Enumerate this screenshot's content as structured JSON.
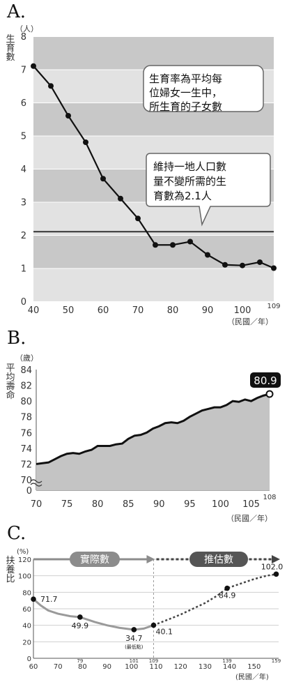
{
  "panels": [
    {
      "letter": "A."
    },
    {
      "letter": "B."
    },
    {
      "letter": "C."
    }
  ],
  "chart_data": [
    {
      "type": "line",
      "y_unit": "（人）",
      "ylabel": "生育數",
      "x_unit": "（民國／年）",
      "x_ticks": [
        40,
        50,
        60,
        70,
        80,
        90,
        100
      ],
      "x_end_label": "109",
      "xlim": [
        40,
        109
      ],
      "ylim": [
        0,
        8
      ],
      "y_ticks": [
        0,
        1,
        2,
        3,
        4,
        5,
        6,
        7,
        8
      ],
      "x": [
        40,
        45,
        50,
        55,
        60,
        65,
        70,
        75,
        80,
        85,
        90,
        95,
        100,
        105,
        109
      ],
      "values": [
        7.1,
        6.5,
        5.6,
        4.8,
        3.7,
        3.1,
        2.5,
        1.7,
        1.7,
        1.8,
        1.4,
        1.1,
        1.08,
        1.18,
        1.0
      ],
      "reference_line": {
        "value": 2.1
      },
      "annotations": [
        "生育率為平均每位婦女一生中，所生育的子女數",
        "維持一地人口數量不變所需的生育數為2.1人"
      ],
      "colors": {
        "line": "#111111",
        "band_dark": "#c8c8c8",
        "band_light": "#e2e2e2"
      }
    },
    {
      "type": "area",
      "y_unit": "（歲）",
      "ylabel": "平均壽命",
      "x_unit": "（民國／年）",
      "x_ticks": [
        70,
        75,
        80,
        85,
        90,
        95,
        100,
        105
      ],
      "x_end_label": "108",
      "y_ticks": [
        70,
        72,
        74,
        76,
        78,
        80,
        82,
        84
      ],
      "y_zero": "0",
      "xlim": [
        70,
        108
      ],
      "ylim": [
        70,
        84
      ],
      "x": [
        70,
        71,
        72,
        73,
        74,
        75,
        76,
        77,
        78,
        79,
        80,
        81,
        82,
        83,
        84,
        85,
        86,
        87,
        88,
        89,
        90,
        91,
        92,
        93,
        94,
        95,
        96,
        97,
        98,
        99,
        100,
        101,
        102,
        103,
        104,
        105,
        106,
        107,
        108
      ],
      "values": [
        72.0,
        72.1,
        72.2,
        72.6,
        73.0,
        73.3,
        73.4,
        73.3,
        73.6,
        73.8,
        74.3,
        74.3,
        74.3,
        74.5,
        74.6,
        75.2,
        75.6,
        75.7,
        76.0,
        76.5,
        76.8,
        77.2,
        77.3,
        77.2,
        77.5,
        78.0,
        78.4,
        78.8,
        79.0,
        79.2,
        79.2,
        79.5,
        80.0,
        79.9,
        80.2,
        80.0,
        80.4,
        80.7,
        80.9
      ],
      "end_label": "80.9",
      "colors": {
        "fill": "#c4c4c4",
        "line": "#111111",
        "badge": "#111111"
      }
    },
    {
      "type": "line",
      "y_unit": "(%)",
      "ylabel": "扶養比",
      "x_unit": "(民國／年)",
      "x_ticks": [
        60,
        70,
        80,
        90,
        100,
        110,
        120,
        130,
        140,
        150
      ],
      "top_ticks": [
        "79",
        "101",
        "109",
        "139",
        "159"
      ],
      "y_ticks": [
        0,
        20,
        40,
        60,
        80,
        100,
        120
      ],
      "xlim": [
        60,
        160
      ],
      "ylim": [
        0,
        120
      ],
      "phase_labels": {
        "actual": "實際數",
        "estimate": "推估數"
      },
      "series": [
        {
          "name": "實際數",
          "x": [
            60,
            63,
            66,
            70,
            75,
            79,
            85,
            90,
            95,
            101,
            105,
            109
          ],
          "values": [
            71.7,
            64,
            58,
            54,
            51,
            49.9,
            44,
            40,
            37,
            34.7,
            36,
            40.1
          ]
        },
        {
          "name": "推估數",
          "x": [
            109,
            115,
            120,
            125,
            130,
            135,
            139,
            145,
            150,
            155,
            159
          ],
          "values": [
            40.1,
            47,
            53,
            60,
            67,
            76,
            84.9,
            91,
            96,
            100,
            102.0
          ]
        }
      ],
      "points": [
        {
          "x": 60,
          "y": 71.7,
          "label": "71.7"
        },
        {
          "x": 79,
          "y": 49.9,
          "label": "49.9"
        },
        {
          "x": 101,
          "y": 34.7,
          "label": "34.7",
          "sublabel": "(最低點)"
        },
        {
          "x": 109,
          "y": 40.1,
          "label": "40.1"
        },
        {
          "x": 139,
          "y": 84.9,
          "label": "84.9"
        },
        {
          "x": 159,
          "y": 102.0,
          "label": "102.0"
        }
      ],
      "colors": {
        "actual": "#9a9a9a",
        "estimate": "#444444",
        "banner": "#8c8c8c"
      }
    }
  ]
}
